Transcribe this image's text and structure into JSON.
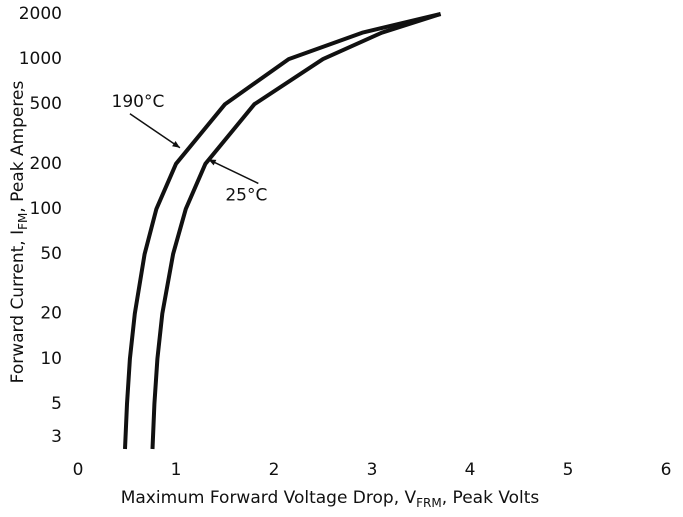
{
  "chart_data": {
    "type": "line",
    "xlabel": [
      "Maximum Forward Voltage Drop, V",
      "FRM",
      ", Peak Volts"
    ],
    "ylabel": [
      "Forward Current, I",
      "FM",
      ", Peak Amperes"
    ],
    "xlim": [
      0,
      6
    ],
    "xticks": [
      0,
      1,
      2,
      3,
      4,
      5,
      6
    ],
    "ylim": [
      2.5,
      2000
    ],
    "yticks": [
      3,
      5,
      10,
      20,
      50,
      100,
      200,
      500,
      1000,
      2000
    ],
    "log_y": true,
    "grid": false,
    "series": [
      {
        "name": "190°C",
        "color": "#111111",
        "x": [
          0.48,
          0.5,
          0.53,
          0.58,
          0.68,
          0.8,
          1.0,
          1.5,
          2.15,
          2.9,
          3.7
        ],
        "values": [
          2.5,
          5,
          10,
          20,
          50,
          100,
          200,
          500,
          1000,
          1500,
          2000
        ]
      },
      {
        "name": "25°C",
        "color": "#111111",
        "x": [
          0.76,
          0.78,
          0.81,
          0.86,
          0.97,
          1.1,
          1.3,
          1.8,
          2.5,
          3.1,
          3.7
        ],
        "values": [
          2.5,
          5,
          10,
          20,
          50,
          100,
          200,
          500,
          1000,
          1500,
          2000
        ]
      }
    ],
    "annotations": [
      {
        "text": "190°C",
        "x": 1.04,
        "y": 256
      },
      {
        "text": "25°C",
        "x": 1.33,
        "y": 214
      }
    ]
  }
}
